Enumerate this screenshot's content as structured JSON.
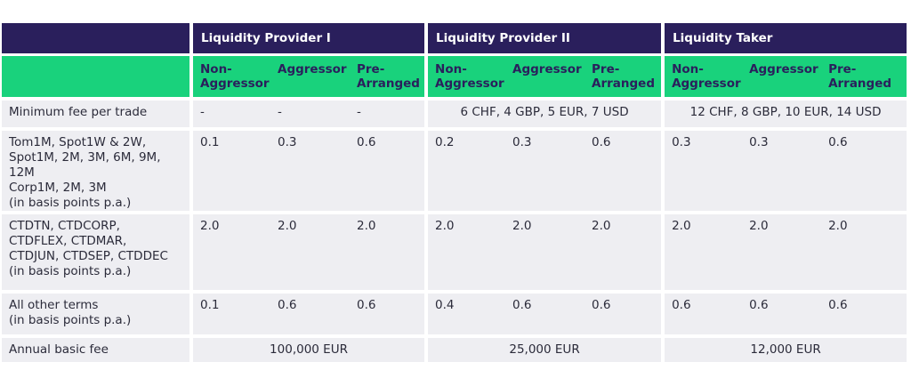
{
  "groups": [
    {
      "label": "Liquidity Provider I"
    },
    {
      "label": "Liquidity Provider II"
    },
    {
      "label": "Liquidity Taker"
    }
  ],
  "subheaders": [
    "Non-Aggressor",
    "Aggressor",
    "Pre-Arranged"
  ],
  "rows": {
    "min_fee": {
      "label": "Minimum fee per trade",
      "lp1": [
        "-",
        "-",
        "-"
      ],
      "lp2": "6 CHF, 4 GBP, 5 EUR, 7 USD",
      "lt": "12 CHF, 8 GBP, 10 EUR, 14 USD"
    },
    "tom": {
      "label_lines": [
        "Tom1M, Spot1W & 2W,",
        "Spot1M, 2M, 3M, 6M, 9M, 12M",
        "Corp1M, 2M, 3M",
        "(in basis points p.a.)"
      ],
      "values": [
        "0.1",
        "0.3",
        "0.6",
        "0.2",
        "0.3",
        "0.6",
        "0.3",
        "0.3",
        "0.6"
      ]
    },
    "ctd": {
      "label_lines": [
        "CTDTN, CTDCORP,",
        "CTDFLEX, CTDMAR,",
        "CTDJUN, CTDSEP, CTDDEC",
        "(in basis points p.a.)"
      ],
      "values": [
        "2.0",
        "2.0",
        "2.0",
        "2.0",
        "2.0",
        "2.0",
        "2.0",
        "2.0",
        "2.0"
      ]
    },
    "other": {
      "label_lines": [
        "All other terms",
        "(in basis points p.a.)"
      ],
      "values": [
        "0.1",
        "0.6",
        "0.6",
        "0.4",
        "0.6",
        "0.6",
        "0.6",
        "0.6",
        "0.6"
      ]
    },
    "annual": {
      "label": "Annual basic fee",
      "lp1": "100,000 EUR",
      "lp2": "25,000 EUR",
      "lt": "12,000 EUR"
    }
  }
}
